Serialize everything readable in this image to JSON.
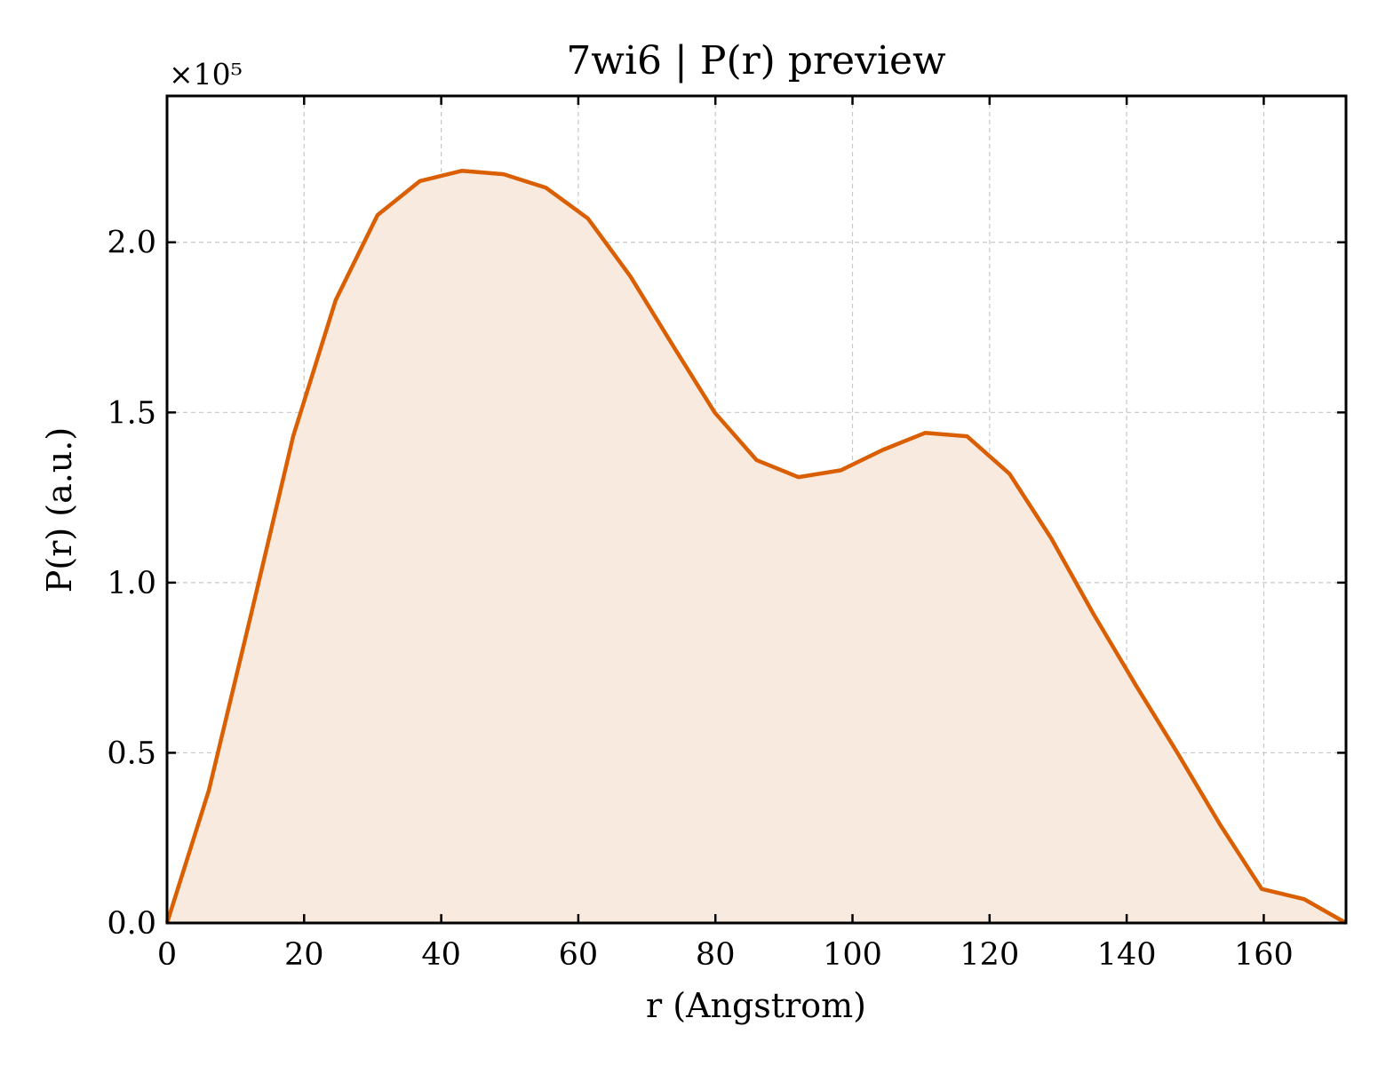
{
  "chart_data": {
    "type": "area",
    "title": "7wi6 | P(r) preview",
    "xlabel": "r (Angstrom)",
    "ylabel": "P(r) (a.u.)",
    "y_scale_label": "×10⁵",
    "xlim": [
      0,
      172
    ],
    "ylim": [
      0,
      2.43
    ],
    "y_multiplier": 100000,
    "x_ticks": [
      0,
      20,
      40,
      60,
      80,
      100,
      120,
      140,
      160
    ],
    "x_tick_labels": [
      "0",
      "20",
      "40",
      "60",
      "80",
      "100",
      "120",
      "140",
      "160"
    ],
    "y_ticks": [
      0,
      0.5,
      1.0,
      1.5,
      2.0
    ],
    "y_tick_labels": [
      "0.0",
      "0.5",
      "1.0",
      "1.5",
      "2.0"
    ],
    "grid": true,
    "line_color": "#d95f02",
    "fill_color": "#f9eadf",
    "series": [
      {
        "x": [
          0,
          6.1,
          12.3,
          18.4,
          24.6,
          30.7,
          36.9,
          43.0,
          49.1,
          55.3,
          61.4,
          67.6,
          73.7,
          79.9,
          86.0,
          92.1,
          98.3,
          104.4,
          110.6,
          116.7,
          122.9,
          129.0,
          135.1,
          141.3,
          147.4,
          153.6,
          159.7,
          165.9,
          172.0
        ],
        "y": [
          0.0,
          0.39,
          0.91,
          1.43,
          1.83,
          2.08,
          2.18,
          2.21,
          2.2,
          2.16,
          2.07,
          1.9,
          1.7,
          1.5,
          1.36,
          1.31,
          1.33,
          1.39,
          1.44,
          1.43,
          1.32,
          1.13,
          0.91,
          0.7,
          0.5,
          0.29,
          0.1,
          0.07,
          0.0
        ]
      }
    ]
  }
}
